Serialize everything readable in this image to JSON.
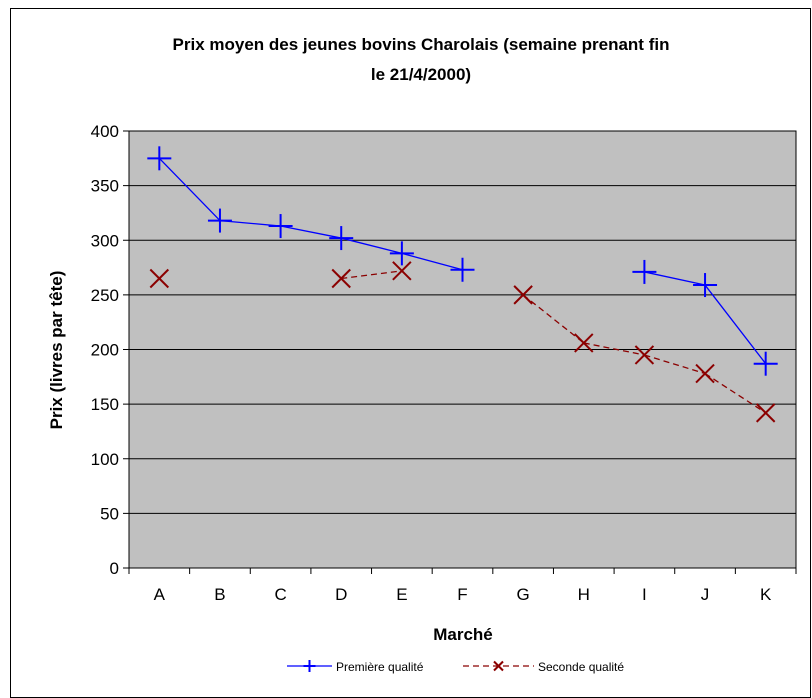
{
  "chart_data": {
    "type": "line",
    "title_line1": "Prix moyen des jeunes bovins Charolais (semaine prenant fin",
    "title_line2": "le 21/4/2000)",
    "xlabel": "Marché",
    "ylabel": "Prix (livres par tête)",
    "categories": [
      "A",
      "B",
      "C",
      "D",
      "E",
      "F",
      "G",
      "H",
      "I",
      "J",
      "K"
    ],
    "ylim": [
      0,
      400
    ],
    "yticks": [
      0,
      50,
      100,
      150,
      200,
      250,
      300,
      350,
      400
    ],
    "grid": true,
    "legend_position": "bottom",
    "series": [
      {
        "name": "Première qualité",
        "color": "#0000ff",
        "marker": "plus",
        "line_style": "solid",
        "values": [
          375,
          318,
          313,
          302,
          288,
          273,
          null,
          null,
          271,
          259,
          187
        ]
      },
      {
        "name": "Seconde qualité",
        "color": "#8b0000",
        "marker": "x",
        "line_style": "dashed",
        "values": [
          265,
          null,
          null,
          265,
          272,
          null,
          250,
          206,
          195,
          178,
          142
        ]
      }
    ]
  },
  "colors": {
    "plot_background": "#c0c0c0",
    "gridline": "#000000"
  }
}
